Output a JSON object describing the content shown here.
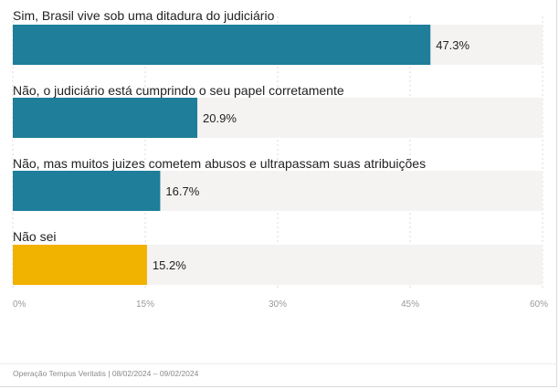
{
  "chart_data": {
    "type": "bar",
    "orientation": "horizontal",
    "categories": [
      "Sim, Brasil vive sob uma ditadura do judiciário",
      "Não, o judiciário está cumprindo o seu papel corretamente",
      "Não, mas muitos juizes cometem abusos e ultrapassam suas atribuições",
      "Não sei"
    ],
    "values": [
      47.3,
      20.9,
      16.7,
      15.2
    ],
    "value_labels": [
      "47.3%",
      "20.9%",
      "16.7%",
      "15.2%"
    ],
    "bar_colors": [
      "#1f7e9a",
      "#1f7e9a",
      "#1f7e9a",
      "#f2b200"
    ],
    "track_color": "#f4f3f1",
    "xlim": [
      0,
      60
    ],
    "ticks": [
      0,
      15,
      30,
      45,
      60
    ],
    "tick_labels": [
      "0%",
      "15%",
      "30%",
      "45%",
      "60%"
    ],
    "grid": true,
    "title": "",
    "xlabel": "",
    "ylabel": ""
  },
  "footer": {
    "source": "Operação Tempus Veritatis | 08/02/2024 – 09/02/2024"
  }
}
